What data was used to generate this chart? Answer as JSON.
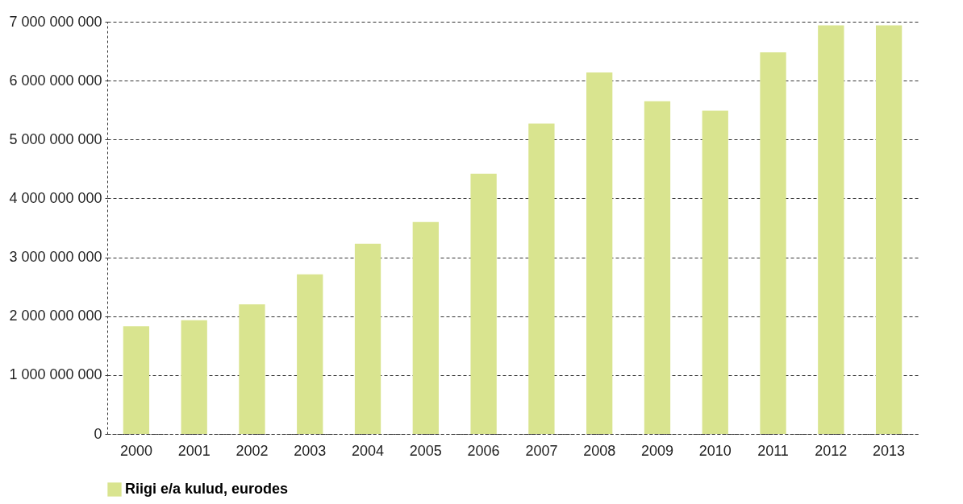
{
  "chart_data": {
    "type": "bar",
    "categories": [
      "2000",
      "2001",
      "2002",
      "2003",
      "2004",
      "2005",
      "2006",
      "2007",
      "2008",
      "2009",
      "2010",
      "2011",
      "2012",
      "2013"
    ],
    "series": [
      {
        "name": "Riigi e/a kulud, eurodes",
        "color": "#d9e48f",
        "values": [
          1830000000,
          1930000000,
          2200000000,
          2710000000,
          3230000000,
          3600000000,
          4420000000,
          5270000000,
          6140000000,
          5650000000,
          5490000000,
          6480000000,
          6940000000,
          6940000000
        ]
      }
    ],
    "ylim": [
      0,
      7000000000
    ],
    "yticks": [
      0,
      {
        "value": 1000000000,
        "label": "1 000 000 000"
      },
      {
        "value": 2000000000,
        "label": "2 000 000 000"
      },
      {
        "value": 3000000000,
        "label": "3 000 000 000"
      },
      {
        "value": 4000000000,
        "label": "4 000 000 000"
      },
      {
        "value": 5000000000,
        "label": "5 000 000 000"
      },
      {
        "value": 6000000000,
        "label": "6 000 000 000"
      },
      {
        "value": 7000000000,
        "label": "7 000 000 000"
      }
    ],
    "grid": "y",
    "legend": "bottom left"
  }
}
